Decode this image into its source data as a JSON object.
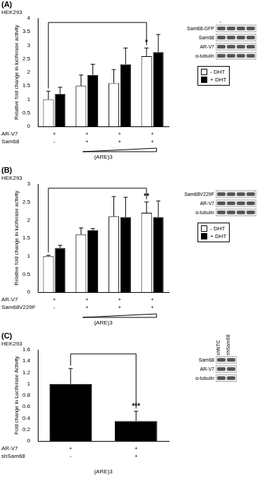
{
  "chart_data": [
    {
      "type": "bar",
      "panel": "(A)",
      "title": "HEK293",
      "y_label": "Relative fold change in luciferase activity",
      "categories": [
        null,
        null,
        null,
        null
      ],
      "series": [
        {
          "name": "- DHT",
          "color": "#ffffff",
          "values": [
            1.0,
            1.5,
            1.6,
            2.6
          ],
          "errors": [
            0.3,
            0.4,
            0.5,
            0.3
          ]
        },
        {
          "name": "+ DHT",
          "color": "#000000",
          "values": [
            1.2,
            1.9,
            2.3,
            2.75
          ],
          "errors": [
            0.25,
            0.4,
            0.6,
            0.65
          ]
        }
      ],
      "conditions": [
        {
          "name": "AR-V7",
          "values": [
            "+",
            "+",
            "+",
            "+"
          ]
        },
        {
          "name": "Sam68",
          "values": [
            "-",
            "+",
            "+",
            "+"
          ]
        }
      ],
      "footer": "(ARE)3",
      "significance": {
        "text": "*",
        "series": 0,
        "from": 0,
        "to": 3
      },
      "blot": {
        "lane_labels": [
          "-",
          null,
          null,
          null
        ],
        "labels": [
          "Sam68-GFP",
          "Sam68",
          "AR-V7",
          "α-tubulin"
        ]
      },
      "ylim": [
        0,
        4
      ],
      "yticks": [
        0,
        0.5,
        1,
        1.5,
        2,
        2.5,
        3,
        3.5,
        4
      ],
      "grid": false,
      "legend": "right"
    },
    {
      "type": "bar",
      "panel": "(B)",
      "title": "HEK293",
      "y_label": "Relative fold change in luciferase activity",
      "categories": [
        null,
        null,
        null,
        null
      ],
      "series": [
        {
          "name": "- DHT",
          "color": "#ffffff",
          "values": [
            1.0,
            1.6,
            2.1,
            2.2
          ],
          "errors": [
            0.02,
            0.18,
            0.55,
            0.3
          ]
        },
        {
          "name": "+ DHT",
          "color": "#000000",
          "values": [
            1.22,
            1.72,
            2.08,
            2.08
          ],
          "errors": [
            0.08,
            0.04,
            0.55,
            0.45
          ]
        }
      ],
      "conditions": [
        {
          "name": "AR-V7",
          "values": [
            "+",
            "+",
            "+",
            "+"
          ]
        },
        {
          "name": "Sam68V229F",
          "values": [
            "-",
            "+",
            "+",
            "+"
          ]
        }
      ],
      "footer": "(ARE)3",
      "significance": {
        "text": "**",
        "series": 0,
        "from": 0,
        "to": 3
      },
      "blot": {
        "lane_labels": [
          null,
          null,
          null,
          null
        ],
        "labels": [
          "Sam68V229F",
          "AR-V7",
          "α-tubulin"
        ]
      },
      "ylim": [
        0,
        3
      ],
      "yticks": [
        0,
        0.5,
        1,
        1.5,
        2,
        2.5,
        3
      ],
      "grid": false,
      "legend": "right"
    },
    {
      "type": "bar",
      "panel": "(C)",
      "title": "HEK293",
      "y_label": "Fold change in Luciferase Activity",
      "categories": [
        null,
        null
      ],
      "values": [
        1.0,
        0.35
      ],
      "errors": [
        0.27,
        0.17
      ],
      "color": "#000000",
      "conditions": [
        {
          "name": "AR-V7",
          "values": [
            "+",
            "+"
          ]
        },
        {
          "name": "shSam68",
          "values": [
            "-",
            "+"
          ]
        }
      ],
      "footer": "(ARE)3",
      "significance": {
        "text": "***",
        "series": 0,
        "from": 0,
        "to": 1
      },
      "blot": {
        "lane_labels": [
          "shNTC",
          "shSam68"
        ],
        "labels": [
          "Sam68",
          "AR-V7",
          "α-tubulin"
        ]
      },
      "ylim": [
        0,
        1.6
      ],
      "yticks": [
        0,
        0.2,
        0.4,
        0.6,
        0.8,
        1,
        1.2,
        1.4,
        1.6
      ],
      "grid": false
    }
  ]
}
